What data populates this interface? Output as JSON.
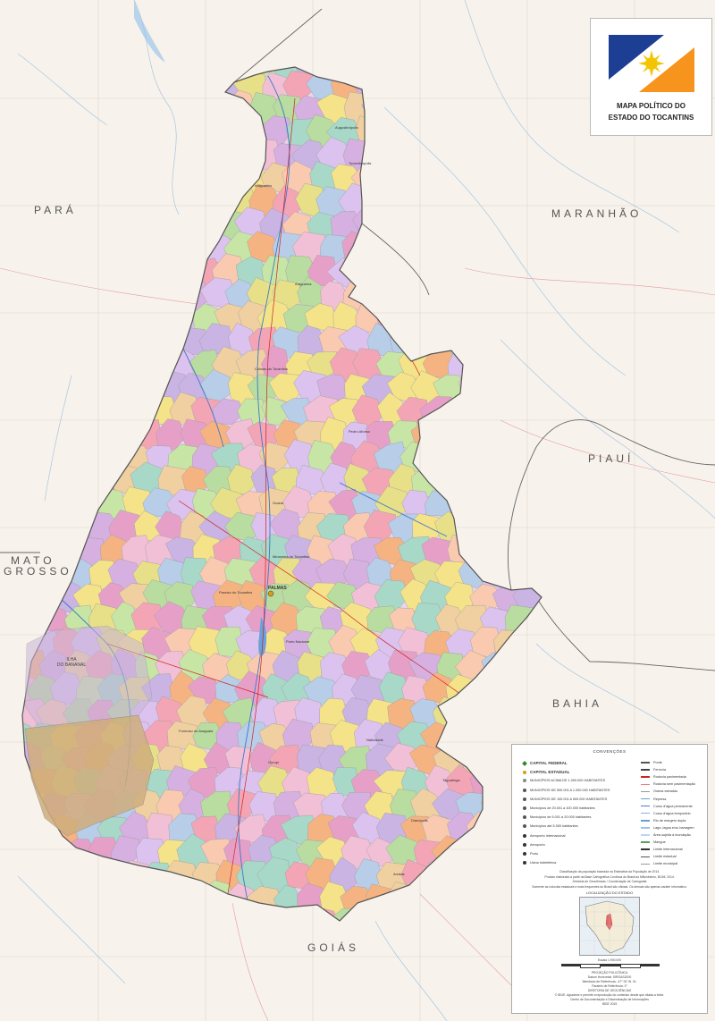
{
  "title": {
    "line1": "MAPA POLÍTICO DO",
    "line2": "ESTADO DO TOCANTINS"
  },
  "states": {
    "para": "PARÁ",
    "maranhao": "MARANHÃO",
    "piaui": "PIAUÍ",
    "mato_grosso_1": "MATO",
    "mato_grosso_2": "GROSSO",
    "bahia": "BAHIA",
    "goias": "GOIÁS"
  },
  "island": {
    "line1": "ILHA",
    "line2": "DO BANANAL"
  },
  "capital": "PALMAS",
  "cities": [
    "Araguaína",
    "Paraíso do Tocantins",
    "Gurupi",
    "Porto Nacional",
    "Colinas do Tocantins",
    "Guaraí",
    "Dianópolis",
    "Tocantinópolis",
    "Miracema do Tocantins",
    "Augustinópolis",
    "Araguatins",
    "Formoso do Araguaia",
    "Pedro Afonso",
    "Taguatinga",
    "Natividade",
    "Arraias"
  ],
  "legend": {
    "header": "CONVENÇÕES",
    "left": [
      {
        "label": "CAPITAL FEDERAL",
        "bold": true,
        "color": "#2a8a2a",
        "symbol": "diamond"
      },
      {
        "label": "CAPITAL ESTADUAL",
        "bold": true,
        "color": "#d4a017",
        "symbol": "dot"
      },
      {
        "label": "MUNICÍPIOS ACIMA DE 1.000.000 HABITANTES",
        "bold": false,
        "color": "#888",
        "symbol": "dot"
      },
      {
        "label": "MUNICÍPIOS DE 500.001 A 1.000.000 HABITANTES",
        "bold": false,
        "color": "#555",
        "symbol": "dot"
      },
      {
        "label": "MUNICÍPIOS DE 100.001 A 500.000 HABITANTES",
        "bold": false,
        "color": "#555",
        "symbol": "dot"
      },
      {
        "label": "Municípios de 20.001 a 100.000 habitantes",
        "bold": false,
        "color": "#555",
        "symbol": "dot"
      },
      {
        "label": "Municípios de 5.001 a 20.000 habitantes",
        "bold": false,
        "color": "#555",
        "symbol": "dot"
      },
      {
        "label": "Municípios até 5.000 habitantes",
        "bold": false,
        "color": "#555",
        "symbol": "dot"
      },
      {
        "label": "Aeroporto Internacional",
        "bold": false,
        "color": "#333",
        "symbol": "dot"
      },
      {
        "label": "Aeroporto",
        "bold": false,
        "color": "#333",
        "symbol": "dot"
      },
      {
        "label": "Porto",
        "bold": false,
        "color": "#333",
        "symbol": "dot"
      },
      {
        "label": "Usina hidrelétrica",
        "bold": false,
        "color": "#333",
        "symbol": "dot"
      }
    ],
    "right": [
      {
        "label": "Ponte",
        "color": "#555"
      },
      {
        "label": "Ferrovia",
        "color": "#444"
      },
      {
        "label": "Rodovia pavimentada",
        "color": "#d02020"
      },
      {
        "label": "Rodovia sem pavimentação",
        "color": "#e08080"
      },
      {
        "label": "Outras estradas",
        "color": "#999"
      },
      {
        "label": "Represa",
        "color": "#6a9fd4"
      },
      {
        "label": "Curso d'água permanente",
        "color": "#4a7fc0"
      },
      {
        "label": "Curso d'água temporário",
        "color": "#8ab0e0"
      },
      {
        "label": "Rio de margem dupla",
        "color": "#6a9fd4"
      },
      {
        "label": "Lago, lagoa e/ou barragem",
        "color": "#9cc4ea"
      },
      {
        "label": "Área sujeita à inundação",
        "color": "#b8d8f0"
      },
      {
        "label": "Mangue",
        "color": "#5aa05a"
      },
      {
        "label": "Limite internacional",
        "color": "#333"
      },
      {
        "label": "Limite estadual",
        "color": "#555"
      },
      {
        "label": "Limite municipal",
        "color": "#999"
      }
    ],
    "notes": [
      "Classificação da população baseada na Estimativa da População de 2014.",
      "Produto elaborado a partir da Base Cartográfica Contínua do Brasil ao Milionésimo, BCIM, 2014.",
      "Diretoria de Geociências / Coordenação de Cartografia",
      "Somente as rodovias estaduais e mais frequentes do Brasil são oficiais. Os demais são apenas caráter informativo."
    ],
    "inset_title": "LOCALIZAÇÃO DO ESTADO",
    "scale": "Escala 1:900.000",
    "footer": [
      "PROJEÇÃO POLICÔNICA",
      "Datum Horizontal: SIRGAS2000",
      "Meridiano de Referência: -47° 00' W. Gr.",
      "Paralelo de Referência: 0°",
      "DIRETORIA DE GEOCIÊNCIAS",
      "© IBGE. Agradece e permite a reprodução do conteúdo desde que citada a fonte.",
      "Centro de Documentação e Disseminação de Informações",
      "IBGE 2015"
    ]
  },
  "colors": {
    "background": "#f7f3ec",
    "state_outline": "#666",
    "flag_blue": "#1c3f94",
    "flag_orange": "#f7941d",
    "flag_sun": "#f2c500"
  }
}
